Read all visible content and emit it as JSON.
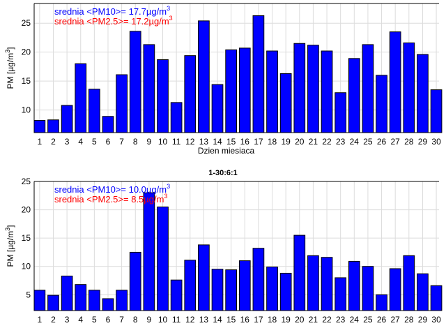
{
  "chart_data": [
    {
      "type": "bar",
      "title": "",
      "xlabel": "Dzien miesiaca",
      "ylabel": "PM [µg/m³]",
      "ylabel_base": "PM [µg/m",
      "ylabel_sup": "3",
      "ylabel_end": "]",
      "categories": [
        1,
        2,
        3,
        4,
        5,
        6,
        7,
        8,
        9,
        10,
        11,
        12,
        13,
        14,
        15,
        16,
        17,
        18,
        19,
        20,
        21,
        22,
        23,
        24,
        25,
        26,
        27,
        28,
        29,
        30
      ],
      "values": [
        8.2,
        8.3,
        10.8,
        18.0,
        13.6,
        8.9,
        16.1,
        23.6,
        21.3,
        18.7,
        11.3,
        19.4,
        25.4,
        14.4,
        20.4,
        20.7,
        26.3,
        20.2,
        16.3,
        21.5,
        21.2,
        20.2,
        13.0,
        18.9,
        21.3,
        16.0,
        23.5,
        21.6,
        19.6,
        13.5
      ],
      "xlim": [
        0.6,
        30.2
      ],
      "ylim": [
        6.1,
        28.4
      ],
      "yticks": [
        10,
        15,
        20,
        25
      ],
      "grid": true,
      "bar_color": "#0000ff",
      "annotations": [
        {
          "text": "srednia <PM10>= 17.7µg/m",
          "sup": "3",
          "color": "#0000ff"
        },
        {
          "text": "srednia <PM2.5>= 17.2µg/m",
          "sup": "3",
          "color": "#ff0000"
        }
      ]
    },
    {
      "type": "bar",
      "title": "1-30:6:1",
      "xlabel": "",
      "ylabel": "PM [µg/m³]",
      "ylabel_base": "PM [µg/m",
      "ylabel_sup": "3",
      "ylabel_end": "]",
      "categories": [
        1,
        2,
        3,
        4,
        5,
        6,
        7,
        8,
        9,
        10,
        11,
        12,
        13,
        14,
        15,
        16,
        17,
        18,
        19,
        20,
        21,
        22,
        23,
        24,
        25,
        26,
        27,
        28,
        29,
        30
      ],
      "values": [
        5.8,
        4.9,
        8.3,
        6.8,
        5.8,
        4.3,
        5.8,
        12.5,
        23.0,
        20.5,
        7.6,
        11.1,
        13.8,
        9.5,
        9.4,
        11.0,
        13.2,
        9.9,
        8.8,
        15.5,
        11.9,
        11.6,
        8.0,
        10.9,
        10.0,
        5.0,
        9.6,
        11.9,
        8.7,
        6.6
      ],
      "xlim": [
        0.6,
        30.2
      ],
      "ylim": [
        2.2,
        25
      ],
      "yticks": [
        5,
        10,
        15,
        20,
        25
      ],
      "grid": true,
      "bar_color": "#0000ff",
      "annotations": [
        {
          "text": "srednia <PM10>= 10.0µg/m",
          "sup": "3",
          "color": "#0000ff"
        },
        {
          "text": "srednia <PM2.5>= 8.5µg/m",
          "sup": "3",
          "color": "#ff0000"
        }
      ]
    }
  ]
}
